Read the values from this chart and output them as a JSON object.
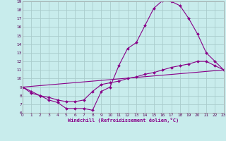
{
  "xlabel": "Windchill (Refroidissement éolien,°C)",
  "bg_color": "#c8ecec",
  "line_color": "#880088",
  "grid_color": "#aacccc",
  "xlim": [
    0,
    23
  ],
  "ylim": [
    6,
    19
  ],
  "xticks": [
    0,
    1,
    2,
    3,
    4,
    5,
    6,
    7,
    8,
    9,
    10,
    11,
    12,
    13,
    14,
    15,
    16,
    17,
    18,
    19,
    20,
    21,
    22,
    23
  ],
  "yticks": [
    6,
    7,
    8,
    9,
    10,
    11,
    12,
    13,
    14,
    15,
    16,
    17,
    18,
    19
  ],
  "line1_x": [
    0,
    1,
    2,
    3,
    4,
    5,
    6,
    7,
    8,
    9,
    10,
    11,
    12,
    13,
    14,
    15,
    16,
    17,
    18,
    19,
    20,
    21,
    22,
    23
  ],
  "line1_y": [
    9.0,
    8.5,
    8.0,
    7.5,
    7.2,
    6.5,
    6.5,
    6.5,
    6.3,
    8.5,
    9.0,
    11.5,
    13.5,
    14.2,
    16.2,
    18.2,
    19.1,
    19.0,
    18.5,
    17.0,
    15.2,
    13.0,
    12.0,
    11.0
  ],
  "line2_x": [
    0,
    1,
    2,
    3,
    4,
    5,
    6,
    7,
    8,
    9,
    10,
    11,
    12,
    13,
    14,
    15,
    16,
    17,
    18,
    19,
    20,
    21,
    22,
    23
  ],
  "line2_y": [
    9.0,
    8.3,
    8.0,
    7.8,
    7.5,
    7.3,
    7.3,
    7.5,
    8.5,
    9.3,
    9.5,
    9.7,
    10.0,
    10.2,
    10.5,
    10.7,
    11.0,
    11.3,
    11.5,
    11.7,
    12.0,
    12.0,
    11.5,
    11.0
  ],
  "line3_x": [
    0,
    23
  ],
  "line3_y": [
    9.0,
    11.0
  ]
}
